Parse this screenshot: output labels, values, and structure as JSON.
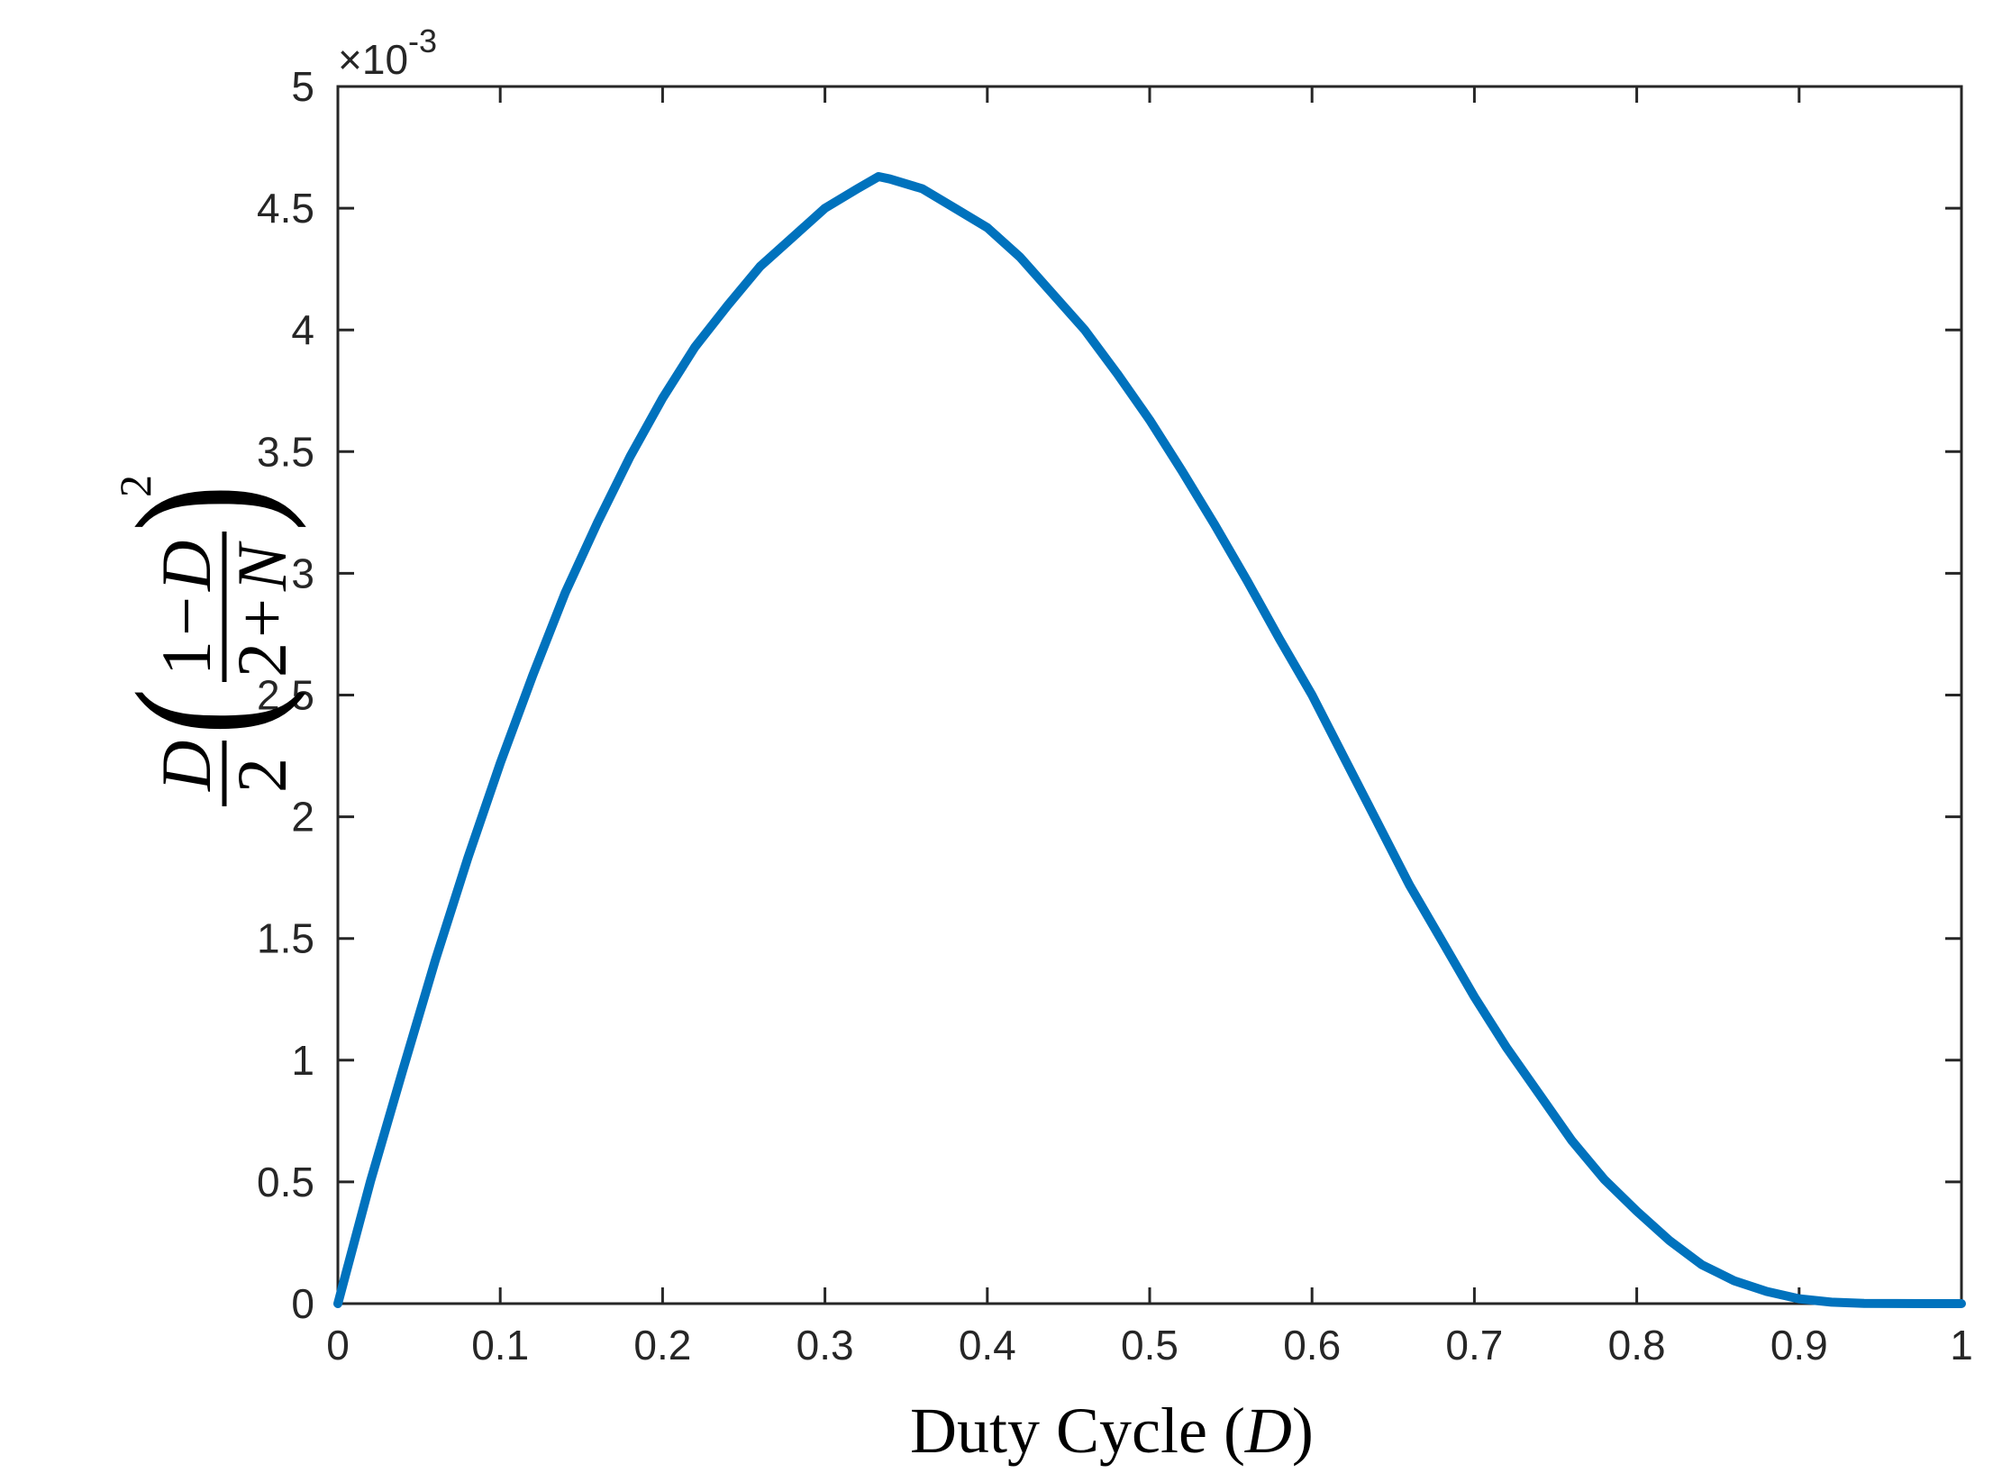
{
  "chart_data": {
    "type": "line",
    "title": "",
    "xlabel": {
      "main": "Duty Cycle (",
      "var": "D",
      "close": ")"
    },
    "ylabel": {
      "leading_var": "D",
      "frac_num": "D",
      "frac_den": "2",
      "inner_num_1": "1",
      "inner_num_op": "−",
      "inner_num_var": "D",
      "inner_den_1": "2",
      "inner_den_op": "+",
      "inner_den_var": "N",
      "exponent": "2"
    },
    "exponent_label": {
      "base": "×10",
      "exp": "-3"
    },
    "xlim": [
      0,
      1
    ],
    "ylim": [
      0,
      5
    ],
    "x_ticks": [
      "0",
      "0.1",
      "0.2",
      "0.3",
      "0.4",
      "0.5",
      "0.6",
      "0.7",
      "0.8",
      "0.9",
      "1"
    ],
    "y_ticks": [
      "0",
      "0.5",
      "1",
      "1.5",
      "2",
      "2.5",
      "3",
      "3.5",
      "4",
      "4.5",
      "5"
    ],
    "y_scale_factor": "1e-3",
    "grid": false,
    "series": [
      {
        "color": "#0072BD",
        "x": [
          0,
          0.02,
          0.04,
          0.06,
          0.08,
          0.1,
          0.12,
          0.14,
          0.16,
          0.18,
          0.2,
          0.22,
          0.24,
          0.26,
          0.28,
          0.3,
          0.32,
          0.333,
          0.34,
          0.36,
          0.38,
          0.4,
          0.42,
          0.44,
          0.46,
          0.48,
          0.5,
          0.52,
          0.54,
          0.56,
          0.58,
          0.6,
          0.62,
          0.64,
          0.66,
          0.68,
          0.7,
          0.72,
          0.74,
          0.76,
          0.78,
          0.8,
          0.82,
          0.84,
          0.86,
          0.88,
          0.9,
          0.92,
          0.94,
          0.96,
          0.98,
          1.0
        ],
        "y": [
          0,
          0.5,
          0.96,
          1.41,
          1.83,
          2.22,
          2.58,
          2.92,
          3.21,
          3.48,
          3.72,
          3.93,
          4.1,
          4.26,
          4.38,
          4.5,
          4.58,
          4.63,
          4.62,
          4.58,
          4.5,
          4.42,
          4.3,
          4.15,
          4.0,
          3.82,
          3.63,
          3.42,
          3.2,
          2.97,
          2.73,
          2.5,
          2.24,
          1.98,
          1.72,
          1.49,
          1.26,
          1.05,
          0.86,
          0.67,
          0.51,
          0.38,
          0.26,
          0.16,
          0.094,
          0.05,
          0.02,
          0.006,
          0.001,
          0.0002,
          2e-05,
          0
        ]
      }
    ]
  }
}
